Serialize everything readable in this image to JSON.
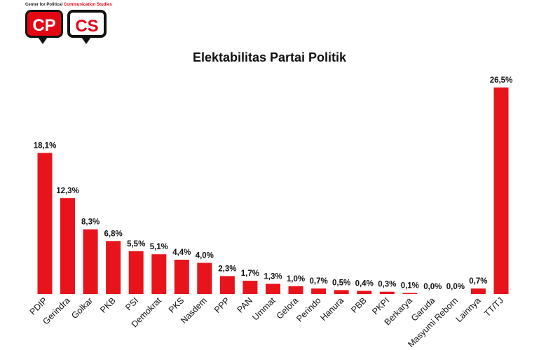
{
  "logo": {
    "tagline_black": "Center for Political",
    "tagline_red": "Communication Studies",
    "left_text": "CP",
    "right_text": "CS"
  },
  "colors": {
    "bar": "#e8141b",
    "text": "#111111"
  },
  "chart_data": {
    "type": "bar",
    "title": "Elektabilitas Partai Politik",
    "xlabel": "",
    "ylabel": "",
    "ylim": [
      0,
      28
    ],
    "grid": false,
    "categories": [
      "PDIP",
      "Gerindra",
      "Golkar",
      "PKB",
      "PSI",
      "Demokrat",
      "PKS",
      "Nasdem",
      "PPP",
      "PAN",
      "Ummat",
      "Gelora",
      "Perindo",
      "Hanura",
      "PBB",
      "PKPI",
      "Berkarya",
      "Garuda",
      "Masyumi Reborn",
      "Lainnya",
      "TT/TJ"
    ],
    "values": [
      18.1,
      12.3,
      8.3,
      6.8,
      5.5,
      5.1,
      4.4,
      4.0,
      2.3,
      1.7,
      1.3,
      1.0,
      0.7,
      0.5,
      0.4,
      0.3,
      0.1,
      0.0,
      0.0,
      0.7,
      26.5
    ],
    "value_labels": [
      "18,1%",
      "12,3%",
      "8,3%",
      "6,8%",
      "5,5%",
      "5,1%",
      "4,4%",
      "4,0%",
      "2,3%",
      "1,7%",
      "1,3%",
      "1,0%",
      "0,7%",
      "0,5%",
      "0,4%",
      "0,3%",
      "0,1%",
      "0,0%",
      "0,0%",
      "0,7%",
      "26,5%"
    ]
  }
}
